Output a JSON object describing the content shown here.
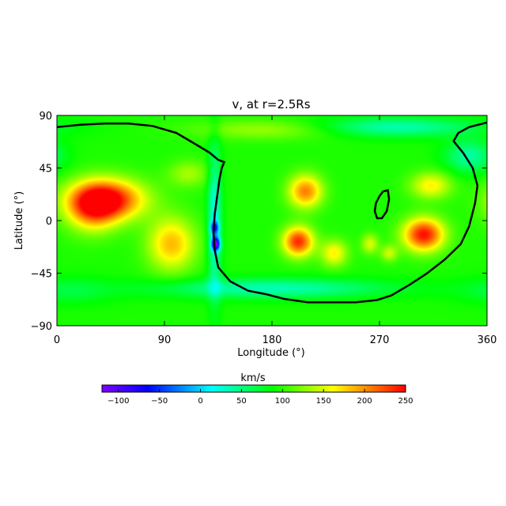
{
  "chart_data": {
    "type": "heatmap",
    "title": "v, at r=2.5Rs",
    "xlabel": "Longitude (°)",
    "ylabel": "Latitude (°)",
    "xlim": [
      0,
      360
    ],
    "ylim": [
      -90,
      90
    ],
    "x_ticks": [
      0,
      90,
      180,
      270,
      360
    ],
    "y_ticks": [
      90,
      45,
      0,
      -45,
      -90
    ],
    "x_tick_labels": [
      "0",
      "90",
      "180",
      "270",
      "360"
    ],
    "y_tick_labels": [
      "90",
      "45",
      "0",
      "−45",
      "−90"
    ],
    "background_value": 95,
    "features": [
      {
        "label": "fast",
        "lon": 42,
        "lat": 18,
        "sigma_lon": 22,
        "sigma_lat": 12,
        "amp": 150
      },
      {
        "label": "fast",
        "lon": 30,
        "lat": 10,
        "sigma_lon": 15,
        "sigma_lat": 14,
        "amp": 90
      },
      {
        "label": "fast",
        "lon": 96,
        "lat": -20,
        "sigma_lon": 14,
        "sigma_lat": 16,
        "amp": 90
      },
      {
        "label": "fast",
        "lon": 202,
        "lat": -18,
        "sigma_lon": 9,
        "sigma_lat": 9,
        "amp": 140
      },
      {
        "label": "fast",
        "lon": 208,
        "lat": 25,
        "sigma_lon": 10,
        "sigma_lat": 10,
        "amp": 110
      },
      {
        "label": "fast",
        "lon": 232,
        "lat": -28,
        "sigma_lon": 8,
        "sigma_lat": 8,
        "amp": 70
      },
      {
        "label": "fast",
        "lon": 307,
        "lat": -12,
        "sigma_lon": 12,
        "sigma_lat": 10,
        "amp": 150
      },
      {
        "label": "fast",
        "lon": 313,
        "lat": 30,
        "sigma_lon": 12,
        "sigma_lat": 8,
        "amp": 70
      },
      {
        "label": "fast",
        "lon": 262,
        "lat": -20,
        "sigma_lon": 5,
        "sigma_lat": 6,
        "amp": 55
      },
      {
        "label": "fast",
        "lon": 278,
        "lat": -28,
        "sigma_lon": 5,
        "sigma_lat": 5,
        "amp": 50
      },
      {
        "label": "fast",
        "lon": 110,
        "lat": 40,
        "sigma_lon": 12,
        "sigma_lat": 8,
        "amp": 40
      },
      {
        "label": "fast",
        "lon": 180,
        "lat": 78,
        "sigma_lon": 45,
        "sigma_lat": 6,
        "amp": 40
      },
      {
        "label": "slow",
        "lon": 132,
        "lat": 0,
        "sigma_lon": 4,
        "sigma_lat": 45,
        "amp": -75
      },
      {
        "label": "slow",
        "lon": 180,
        "lat": -58,
        "sigma_lon": 70,
        "sigma_lat": 6,
        "amp": -60
      },
      {
        "label": "slow",
        "lon": 280,
        "lat": 80,
        "sigma_lon": 50,
        "sigma_lat": 6,
        "amp": -60
      },
      {
        "label": "slow",
        "lon": 133,
        "lat": -20,
        "sigma_lon": 2.5,
        "sigma_lat": 4,
        "amp": -160
      },
      {
        "label": "slow",
        "lon": 132,
        "lat": -6,
        "sigma_lon": 2.5,
        "sigma_lat": 4,
        "amp": -100
      },
      {
        "label": "slow",
        "lon": 345,
        "lat": 55,
        "sigma_lon": 14,
        "sigma_lat": 10,
        "amp": -55
      },
      {
        "label": "slow",
        "lon": 10,
        "lat": -60,
        "sigma_lon": 25,
        "sigma_lat": 8,
        "amp": -25
      }
    ],
    "neutral_line": [
      [
        0,
        80
      ],
      [
        20,
        82
      ],
      [
        40,
        83
      ],
      [
        60,
        83
      ],
      [
        80,
        81
      ],
      [
        100,
        75
      ],
      [
        115,
        66
      ],
      [
        128,
        58
      ],
      [
        135,
        52
      ],
      [
        140,
        50
      ],
      [
        138,
        45
      ],
      [
        136,
        35
      ],
      [
        134,
        20
      ],
      [
        132,
        5
      ],
      [
        131,
        -10
      ],
      [
        132,
        -25
      ],
      [
        135,
        -40
      ],
      [
        145,
        -52
      ],
      [
        160,
        -60
      ],
      [
        175,
        -63
      ],
      [
        190,
        -67
      ],
      [
        210,
        -70
      ],
      [
        230,
        -70
      ],
      [
        250,
        -70
      ],
      [
        268,
        -68
      ],
      [
        280,
        -64
      ],
      [
        295,
        -55
      ],
      [
        310,
        -45
      ],
      [
        325,
        -33
      ],
      [
        338,
        -20
      ],
      [
        345,
        -5
      ],
      [
        350,
        15
      ],
      [
        352,
        30
      ],
      [
        348,
        45
      ],
      [
        340,
        58
      ],
      [
        332,
        68
      ],
      [
        336,
        75
      ],
      [
        345,
        80
      ],
      [
        360,
        84
      ]
    ],
    "neutral_island": [
      [
        267,
        15
      ],
      [
        270,
        21
      ],
      [
        273,
        25
      ],
      [
        277,
        26
      ],
      [
        278,
        18
      ],
      [
        276,
        8
      ],
      [
        272,
        2
      ],
      [
        268,
        2
      ],
      [
        266,
        8
      ],
      [
        267,
        15
      ]
    ],
    "colorbar": {
      "label": "km/s",
      "min": -120,
      "max": 250,
      "ticks": [
        -100,
        -50,
        0,
        50,
        100,
        150,
        200,
        250
      ],
      "tick_labels": [
        "−100",
        "−50",
        "0",
        "50",
        "100",
        "150",
        "200",
        "250"
      ]
    }
  }
}
